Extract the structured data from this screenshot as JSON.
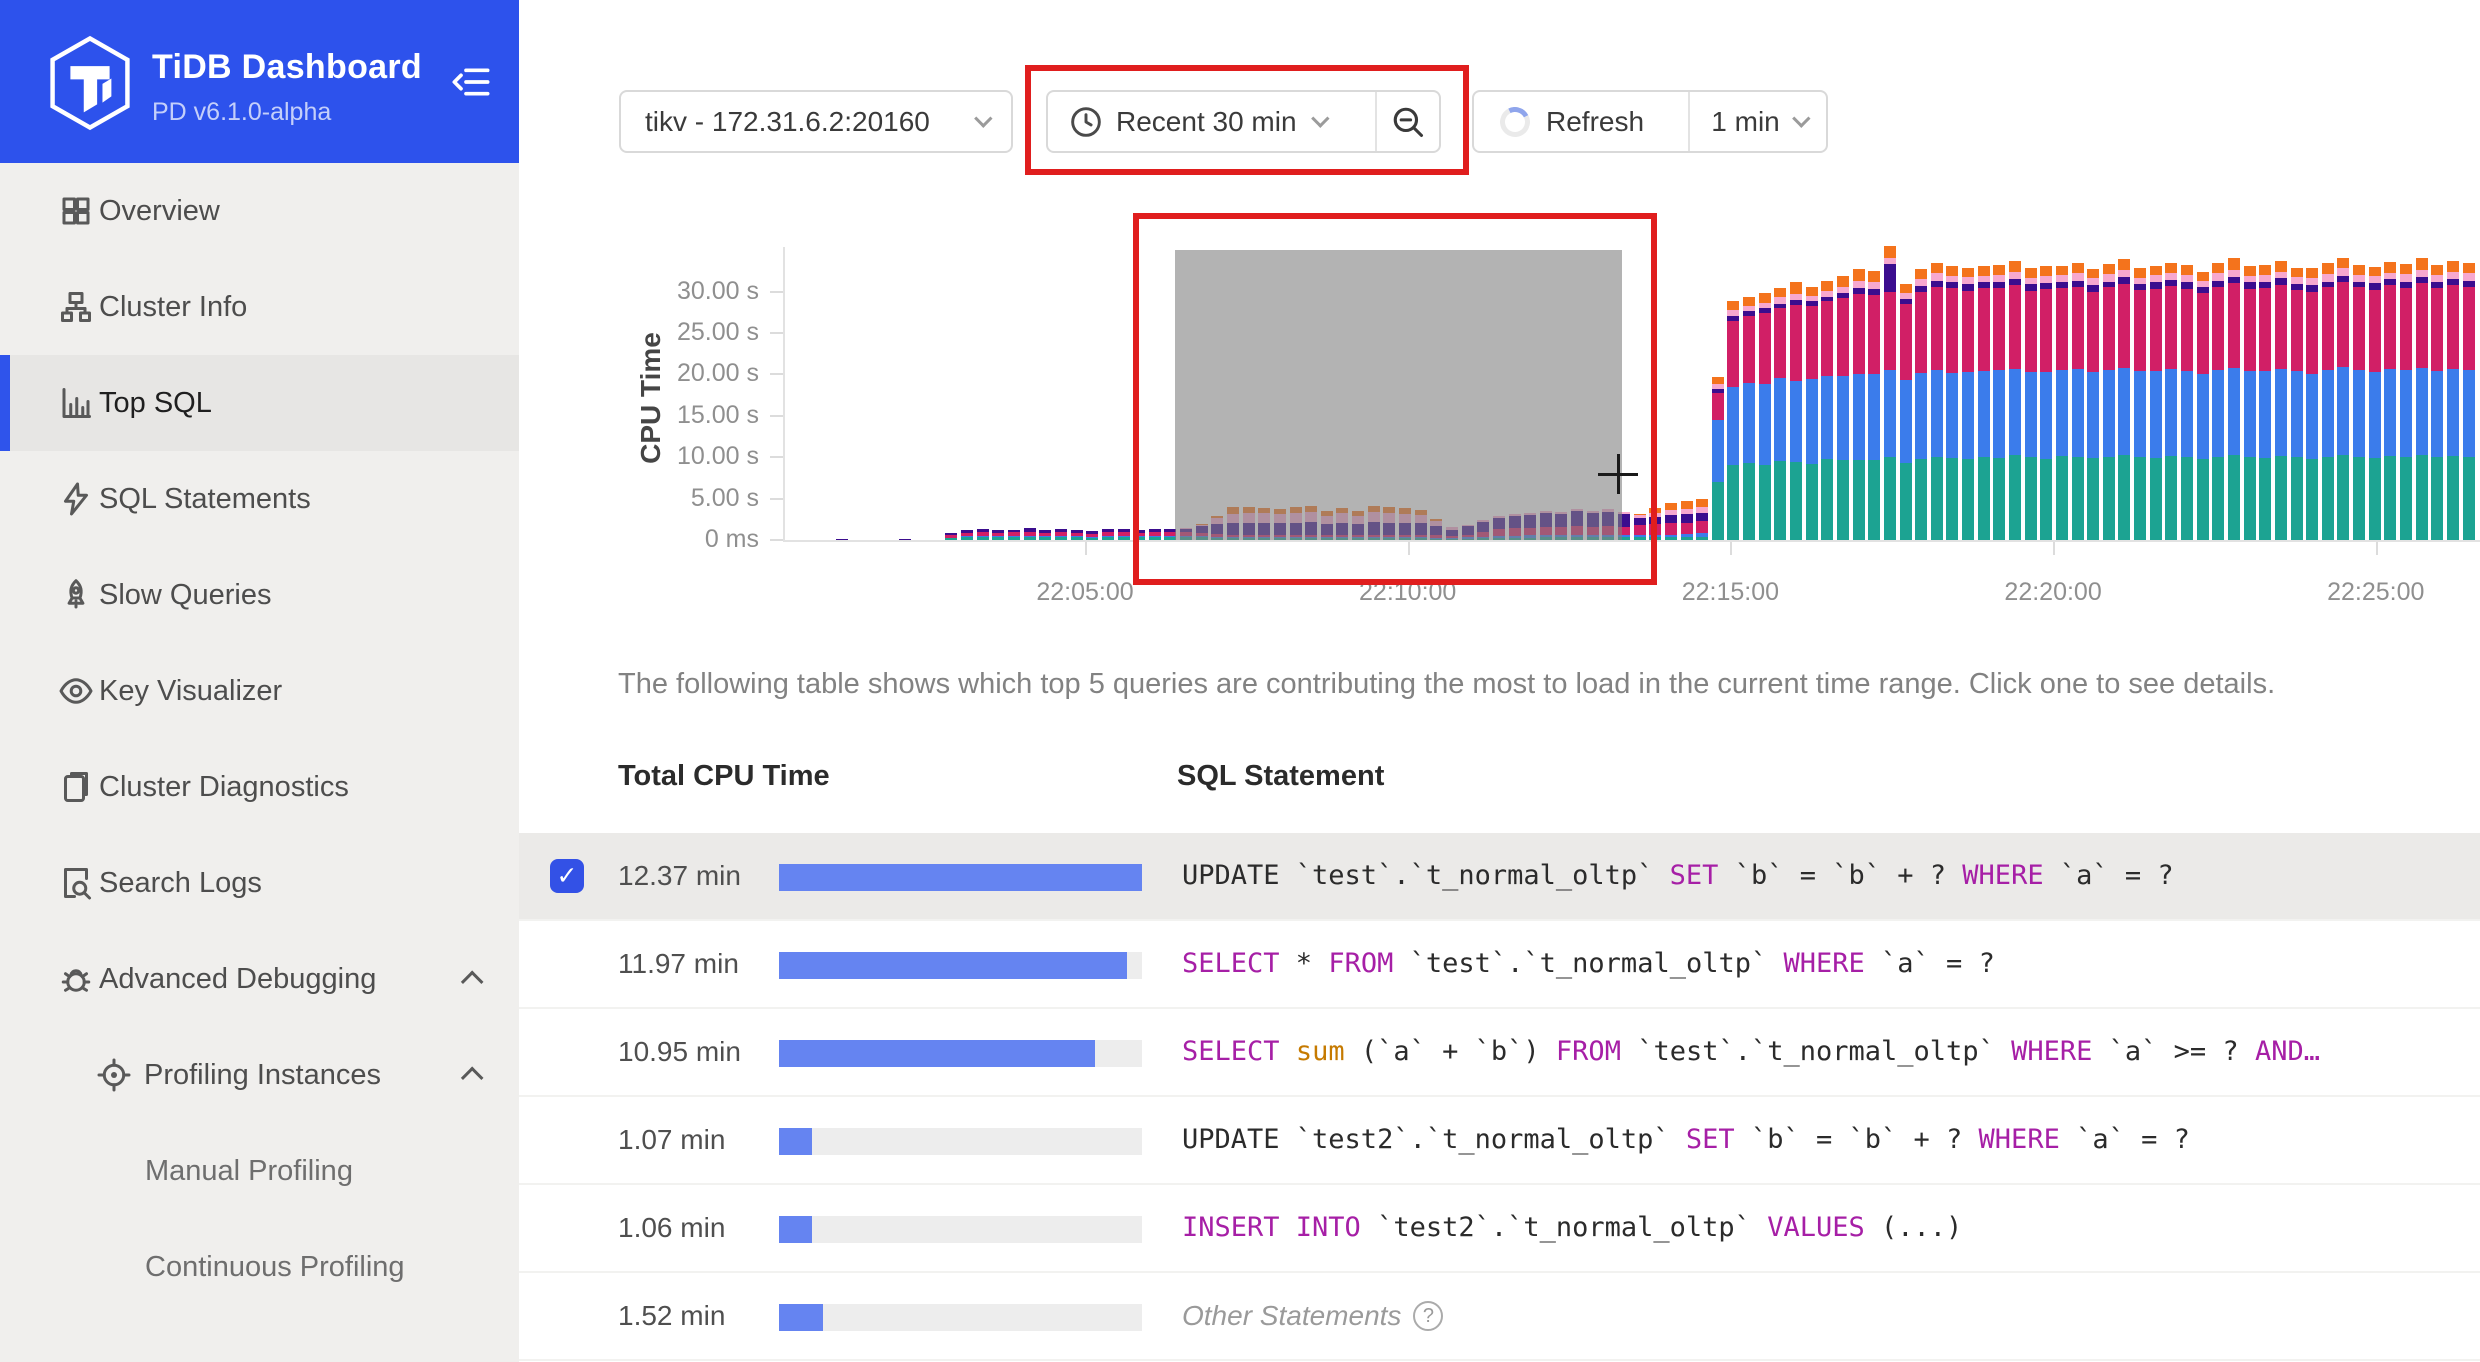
{
  "sidebar": {
    "title": "TiDB Dashboard",
    "subtitle": "PD v6.1.0-alpha",
    "items": [
      {
        "label": "Overview",
        "icon": "grid-icon",
        "level": 1
      },
      {
        "label": "Cluster Info",
        "icon": "cluster-icon",
        "level": 1
      },
      {
        "label": "Top SQL",
        "icon": "bar-chart-icon",
        "level": 1,
        "selected": true
      },
      {
        "label": "SQL Statements",
        "icon": "lightning-icon",
        "level": 1
      },
      {
        "label": "Slow Queries",
        "icon": "rocket-icon",
        "level": 1
      },
      {
        "label": "Key Visualizer",
        "icon": "eye-icon",
        "level": 1
      },
      {
        "label": "Cluster Diagnostics",
        "icon": "clipboard-icon",
        "level": 1
      },
      {
        "label": "Search Logs",
        "icon": "search-doc-icon",
        "level": 1
      },
      {
        "label": "Advanced Debugging",
        "icon": "bug-icon",
        "level": 1,
        "expanded": true
      },
      {
        "label": "Profiling Instances",
        "icon": "target-icon",
        "level": 2,
        "expanded": true
      },
      {
        "label": "Manual Profiling",
        "level": 3
      },
      {
        "label": "Continuous Profiling",
        "level": 3
      }
    ]
  },
  "toolbar": {
    "instance_select": "tikv - 172.31.6.2:20160",
    "time_range": "Recent 30 min",
    "refresh_label": "Refresh",
    "refresh_interval": "1 min"
  },
  "annotations": {
    "color": "#E01E1E"
  },
  "description": "The following table shows which top 5 queries are contributing the most to load in the current time range. Click one to see details.",
  "table": {
    "headers": [
      "Total CPU Time",
      "SQL Statement"
    ],
    "rows": [
      {
        "cpu_time": "12.37 min",
        "bar_pct": 100,
        "selected": true,
        "checked": true,
        "sql": [
          [
            "UPDATE `test`.`t_normal_oltp` ",
            "t"
          ],
          [
            "SET",
            "k"
          ],
          [
            " `b` = `b` + ? ",
            "t"
          ],
          [
            "WHERE",
            "k"
          ],
          [
            " `a` = ?",
            "t"
          ]
        ]
      },
      {
        "cpu_time": "11.97 min",
        "bar_pct": 96,
        "sql": [
          [
            "SELECT",
            "k"
          ],
          [
            " * ",
            "t"
          ],
          [
            "FROM",
            "k"
          ],
          [
            " `test`.`t_normal_oltp` ",
            "t"
          ],
          [
            "WHERE",
            "k"
          ],
          [
            " `a` = ?",
            "t"
          ]
        ]
      },
      {
        "cpu_time": "10.95 min",
        "bar_pct": 87,
        "sql": [
          [
            "SELECT",
            "k"
          ],
          [
            " ",
            "t"
          ],
          [
            "sum",
            "f"
          ],
          [
            " (`a` + `b`) ",
            "t"
          ],
          [
            "FROM",
            "k"
          ],
          [
            " `test`.`t_normal_oltp` ",
            "t"
          ],
          [
            "WHERE",
            "k"
          ],
          [
            " `a` >= ? ",
            "t"
          ],
          [
            "AND…",
            "k"
          ]
        ]
      },
      {
        "cpu_time": "1.07 min",
        "bar_pct": 9,
        "sql": [
          [
            "UPDATE `test2`.`t_normal_oltp` ",
            "t"
          ],
          [
            "SET",
            "k"
          ],
          [
            " `b` = `b` + ? ",
            "t"
          ],
          [
            "WHERE",
            "k"
          ],
          [
            " `a` = ?",
            "t"
          ]
        ]
      },
      {
        "cpu_time": "1.06 min",
        "bar_pct": 9,
        "sql": [
          [
            "INSERT INTO",
            "k"
          ],
          [
            " `test2`.`t_normal_oltp` ",
            "t"
          ],
          [
            "VALUES",
            "k"
          ],
          [
            " (...)",
            "t"
          ]
        ]
      },
      {
        "cpu_time": "1.52 min",
        "bar_pct": 12,
        "other": true,
        "other_label": "Other Statements",
        "help_glyph": "?"
      }
    ]
  },
  "chart_data": {
    "type": "bar",
    "stacked": true,
    "title": "",
    "ylabel": "CPU Time",
    "ytick_labels": [
      "30.00 s",
      "25.00 s",
      "20.00 s",
      "15.00 s",
      "10.00 s",
      "5.00 s",
      "0 ms"
    ],
    "ytick_values": [
      30,
      25,
      20,
      15,
      10,
      5,
      0
    ],
    "xtick_labels": [
      "22:05:00",
      "22:10:00",
      "22:15:00",
      "22:20:00",
      "22:25:00"
    ],
    "ylim": [
      0,
      35
    ],
    "grid": false,
    "legend": "none",
    "series_colors": [
      "#1CA392",
      "#3B7CEB",
      "#D11F66",
      "#3B0D8E",
      "#F7A8CF",
      "#F4731C"
    ],
    "brush_selection": {
      "x_from": "22:06:30",
      "x_to": "22:13:20"
    },
    "bars_unit": "seconds, stacked bottom-to-top [teal, blue, crimson, purple, pink, orange]",
    "bars": [
      [
        0,
        0,
        0,
        0.12,
        0,
        0
      ],
      [
        0,
        0,
        0,
        0,
        0,
        0
      ],
      [
        0,
        0,
        0,
        0,
        0,
        0
      ],
      [
        0,
        0,
        0,
        0,
        0,
        0
      ],
      [
        0,
        0,
        0,
        0.12,
        0,
        0
      ],
      [
        0,
        0,
        0,
        0,
        0,
        0
      ],
      [
        0,
        0,
        0,
        0,
        0,
        0
      ],
      [
        0.2,
        0.1,
        0.35,
        0.25,
        0,
        0
      ],
      [
        0.3,
        0.15,
        0.45,
        0.3,
        0,
        0
      ],
      [
        0.3,
        0.15,
        0.5,
        0.35,
        0,
        0
      ],
      [
        0.3,
        0.15,
        0.45,
        0.3,
        0,
        0
      ],
      [
        0.3,
        0.15,
        0.5,
        0.3,
        0,
        0
      ],
      [
        0.35,
        0.15,
        0.5,
        0.4,
        0,
        0
      ],
      [
        0.3,
        0.15,
        0.45,
        0.3,
        0,
        0
      ],
      [
        0.3,
        0.15,
        0.5,
        0.35,
        0,
        0
      ],
      [
        0.3,
        0.15,
        0.45,
        0.35,
        0,
        0
      ],
      [
        0.25,
        0.12,
        0.4,
        0.28,
        0,
        0
      ],
      [
        0.3,
        0.15,
        0.5,
        0.4,
        0,
        0
      ],
      [
        0.3,
        0.15,
        0.5,
        0.35,
        0,
        0
      ],
      [
        0.3,
        0.15,
        0.45,
        0.3,
        0,
        0
      ],
      [
        0.3,
        0.15,
        0.5,
        0.35,
        0,
        0
      ],
      [
        0.3,
        0.15,
        0.5,
        0.35,
        0,
        0
      ],
      [
        0.3,
        0.15,
        0.5,
        0.4,
        0.1,
        0
      ],
      [
        0.3,
        0.15,
        0.4,
        0.8,
        0.2,
        0.1
      ],
      [
        0.25,
        0.15,
        0.3,
        1.2,
        0.7,
        0.3
      ],
      [
        0.2,
        0.1,
        0.25,
        1.5,
        1.1,
        0.8
      ],
      [
        0.2,
        0.1,
        0.25,
        1.5,
        1.2,
        0.7
      ],
      [
        0.2,
        0.1,
        0.3,
        1.5,
        1.1,
        0.7
      ],
      [
        0.2,
        0.1,
        0.25,
        1.45,
        1.1,
        0.65
      ],
      [
        0.2,
        0.1,
        0.3,
        1.5,
        1.15,
        0.7
      ],
      [
        0.2,
        0.1,
        0.25,
        1.6,
        1.2,
        0.75
      ],
      [
        0.2,
        0.1,
        0.25,
        1.4,
        1.0,
        0.6
      ],
      [
        0.2,
        0.1,
        0.3,
        1.5,
        1.1,
        0.7
      ],
      [
        0.2,
        0.1,
        0.25,
        1.35,
        0.95,
        0.7
      ],
      [
        0.2,
        0.1,
        0.3,
        1.55,
        1.2,
        0.75
      ],
      [
        0.2,
        0.1,
        0.3,
        1.5,
        1.15,
        0.7
      ],
      [
        0.2,
        0.1,
        0.25,
        1.5,
        1.1,
        0.7
      ],
      [
        0.2,
        0.1,
        0.3,
        1.4,
        1.05,
        0.6
      ],
      [
        0.15,
        0.1,
        0.3,
        1.1,
        0.7,
        0.15
      ],
      [
        0.1,
        0.1,
        0.25,
        0.8,
        0.3,
        0
      ],
      [
        0.15,
        0.15,
        0.35,
        1.0,
        0.2,
        0
      ],
      [
        0.2,
        0.2,
        0.6,
        1.2,
        0.2,
        0
      ],
      [
        0.25,
        0.25,
        0.8,
        1.4,
        0.25,
        0
      ],
      [
        0.25,
        0.25,
        0.9,
        1.5,
        0.3,
        0
      ],
      [
        0.25,
        0.3,
        0.95,
        1.5,
        0.3,
        0
      ],
      [
        0.3,
        0.3,
        1.0,
        1.6,
        0.3,
        0
      ],
      [
        0.3,
        0.3,
        1.0,
        1.5,
        0.3,
        0
      ],
      [
        0.3,
        0.3,
        1.1,
        1.8,
        0.3,
        0
      ],
      [
        0.3,
        0.3,
        1.0,
        1.6,
        0.3,
        0
      ],
      [
        0.3,
        0.3,
        1.1,
        1.7,
        0.35,
        0
      ],
      [
        0.3,
        0.3,
        1.0,
        1.5,
        0.3,
        0
      ],
      [
        0.3,
        0.3,
        1.2,
        0.9,
        0.3,
        0.2
      ],
      [
        0.3,
        0.3,
        1.3,
        0.9,
        0.5,
        0.6
      ],
      [
        0.3,
        0.3,
        1.4,
        1.0,
        0.6,
        0.9
      ],
      [
        0.35,
        0.35,
        1.4,
        1.0,
        0.7,
        0.9
      ],
      [
        0.4,
        0.4,
        1.5,
        1.0,
        0.7,
        0.9
      ],
      [
        7.0,
        7.5,
        3.2,
        0.5,
        0.6,
        0.9
      ],
      [
        9.0,
        9.5,
        8.0,
        0.6,
        0.7,
        1.1
      ],
      [
        9.3,
        9.6,
        8.2,
        0.5,
        0.7,
        1.0
      ],
      [
        9.0,
        9.8,
        8.6,
        0.6,
        0.6,
        1.2
      ],
      [
        9.5,
        10.0,
        8.5,
        0.5,
        0.8,
        1.1
      ],
      [
        9.4,
        9.8,
        9.2,
        0.6,
        0.7,
        1.4
      ],
      [
        9.2,
        10.2,
        8.8,
        0.7,
        0.6,
        1.0
      ],
      [
        9.8,
        10.0,
        9.0,
        0.5,
        0.8,
        1.2
      ],
      [
        9.6,
        10.2,
        9.4,
        0.6,
        0.8,
        1.3
      ],
      [
        9.7,
        10.4,
        9.6,
        0.7,
        0.9,
        1.4
      ],
      [
        9.7,
        10.3,
        9.6,
        0.7,
        0.9,
        1.3
      ],
      [
        10.0,
        10.5,
        9.5,
        3.3,
        0.8,
        1.4
      ],
      [
        9.3,
        10.0,
        9.2,
        0.6,
        0.7,
        1.1
      ],
      [
        9.8,
        10.4,
        9.8,
        0.7,
        0.8,
        1.2
      ],
      [
        10.0,
        10.5,
        10.0,
        0.8,
        0.9,
        1.3
      ],
      [
        9.9,
        10.3,
        10.2,
        0.7,
        0.8,
        1.2
      ],
      [
        9.8,
        10.5,
        9.8,
        0.8,
        0.9,
        1.1
      ],
      [
        10.0,
        10.4,
        10.0,
        0.7,
        0.8,
        1.2
      ],
      [
        9.9,
        10.6,
        9.9,
        0.8,
        0.8,
        1.2
      ],
      [
        10.2,
        10.5,
        10.1,
        0.7,
        0.9,
        1.3
      ],
      [
        10.0,
        10.3,
        9.8,
        0.8,
        0.8,
        1.1
      ],
      [
        9.8,
        10.5,
        10.0,
        0.7,
        0.9,
        1.2
      ],
      [
        10.1,
        10.4,
        9.9,
        0.8,
        0.8,
        1.1
      ],
      [
        10.0,
        10.6,
        10.0,
        0.7,
        0.9,
        1.3
      ],
      [
        9.9,
        10.4,
        9.7,
        0.8,
        0.8,
        1.1
      ],
      [
        10.0,
        10.5,
        10.0,
        0.7,
        0.9,
        1.2
      ],
      [
        10.2,
        10.6,
        10.1,
        0.8,
        0.9,
        1.3
      ],
      [
        10.0,
        10.4,
        9.8,
        0.7,
        0.8,
        1.2
      ],
      [
        9.9,
        10.5,
        9.9,
        0.8,
        0.9,
        1.1
      ],
      [
        10.1,
        10.6,
        10.0,
        0.7,
        0.8,
        1.3
      ],
      [
        10.0,
        10.4,
        9.9,
        0.8,
        0.9,
        1.2
      ],
      [
        9.8,
        10.3,
        9.7,
        0.7,
        0.8,
        1.1
      ],
      [
        10.0,
        10.5,
        10.0,
        0.8,
        0.9,
        1.2
      ],
      [
        10.2,
        10.6,
        10.2,
        0.7,
        0.9,
        1.4
      ],
      [
        10.0,
        10.4,
        9.9,
        0.8,
        0.8,
        1.2
      ],
      [
        9.9,
        10.5,
        10.0,
        0.7,
        0.9,
        1.2
      ],
      [
        10.1,
        10.6,
        10.1,
        0.8,
        0.8,
        1.3
      ],
      [
        10.0,
        10.4,
        9.8,
        0.7,
        0.9,
        1.1
      ],
      [
        9.8,
        10.3,
        9.9,
        0.8,
        0.8,
        1.2
      ],
      [
        10.0,
        10.5,
        10.0,
        0.7,
        0.9,
        1.3
      ],
      [
        10.2,
        10.7,
        10.2,
        0.8,
        0.9,
        1.3
      ],
      [
        10.0,
        10.5,
        10.0,
        0.7,
        0.8,
        1.2
      ],
      [
        9.9,
        10.4,
        9.9,
        0.8,
        0.9,
        1.1
      ],
      [
        10.1,
        10.6,
        10.1,
        0.7,
        0.8,
        1.3
      ],
      [
        10.0,
        10.5,
        9.9,
        0.8,
        0.9,
        1.2
      ],
      [
        10.2,
        10.6,
        10.2,
        0.7,
        0.9,
        1.4
      ],
      [
        10.0,
        10.4,
        10.0,
        0.8,
        0.8,
        1.2
      ],
      [
        10.1,
        10.6,
        10.1,
        0.7,
        0.9,
        1.3
      ],
      [
        10.0,
        10.5,
        10.0,
        0.8,
        0.9,
        1.2
      ]
    ]
  }
}
